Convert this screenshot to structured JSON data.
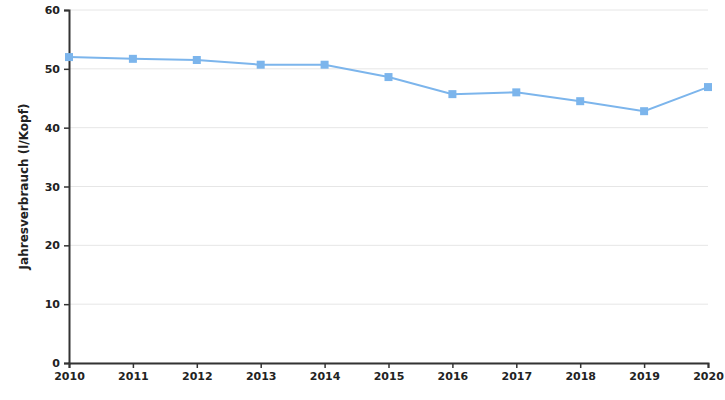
{
  "chart_data": {
    "type": "line",
    "y_label": "Jahresverbrauch (l/Kopf)",
    "x": [
      2010,
      2011,
      2012,
      2013,
      2014,
      2015,
      2016,
      2017,
      2018,
      2019,
      2020
    ],
    "values": [
      52.0,
      51.7,
      51.5,
      50.7,
      50.7,
      48.6,
      45.7,
      46.0,
      44.5,
      42.8,
      46.9
    ],
    "color": "#7cb5ec",
    "marker": "square",
    "xlim": [
      2010,
      2020
    ],
    "xticks": [
      2010,
      2011,
      2012,
      2013,
      2014,
      2015,
      2016,
      2017,
      2018,
      2019,
      2020
    ],
    "ylim": [
      0,
      60
    ],
    "yticks": [
      0,
      10,
      20,
      30,
      40,
      50,
      60
    ],
    "grid": true
  }
}
